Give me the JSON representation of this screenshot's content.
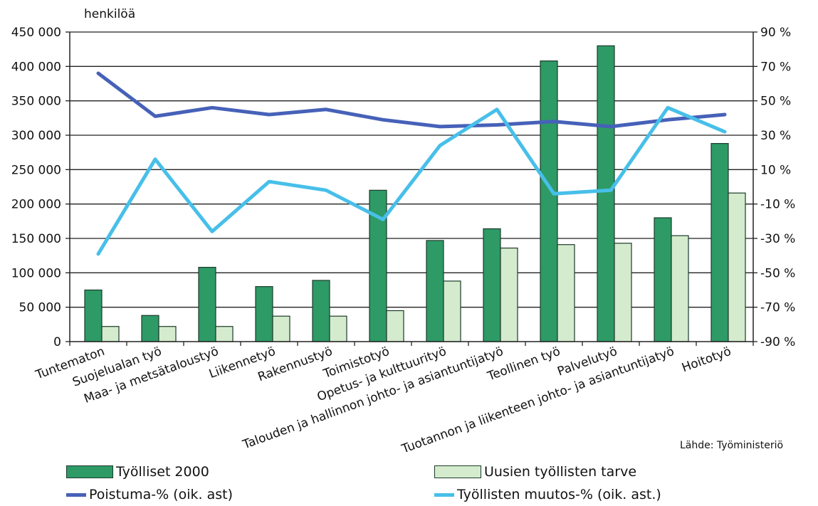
{
  "chart_data": {
    "type": "bar",
    "title": "",
    "ylabel": "henkilöä",
    "ylim": [
      0,
      450000
    ],
    "y2lim": [
      -90,
      90
    ],
    "yticks": [
      "0",
      "50 000",
      "100 000",
      "150 000",
      "200 000",
      "250 000",
      "300 000",
      "350 000",
      "400 000",
      "450 000"
    ],
    "y2ticks": [
      "-90 %",
      "-70 %",
      "-50 %",
      "-30 %",
      "-10 %",
      "10 %",
      "30 %",
      "50 %",
      "70 %",
      "90 %"
    ],
    "categories": [
      "Tuntematon",
      "Suojelualan työ",
      "Maa- ja metsätaloustyö",
      "Liikennetyö",
      "Rakennustyö",
      "Toimistotyö",
      "Opetus- ja kulttuurityö",
      "Talouden ja hallinnon johto- ja asiantuntijatyö",
      "Teollinen työ",
      "Palvelutyö",
      "Tuotannon ja liikenteen johto- ja asiantuntijatyö",
      "Hoitotyö"
    ],
    "series": [
      {
        "name": "Työlliset 2000",
        "kind": "bar",
        "axis": "left",
        "color": "#2e9a66",
        "values": [
          75000,
          38000,
          108000,
          80000,
          89000,
          220000,
          147000,
          164000,
          408000,
          430000,
          180000,
          288000
        ]
      },
      {
        "name": "Uusien työllisten tarve",
        "kind": "bar",
        "axis": "left",
        "color": "#d4ebcd",
        "values": [
          22000,
          22000,
          22000,
          37000,
          37000,
          45000,
          88000,
          136000,
          141000,
          143000,
          154000,
          216000
        ]
      },
      {
        "name": "Poistuma-% (oik. ast)",
        "kind": "line",
        "axis": "right",
        "color": "#4661b8",
        "values": [
          66,
          41,
          46,
          42,
          45,
          39,
          35,
          36,
          38,
          35,
          39,
          42
        ]
      },
      {
        "name": "Työllisten muutos-% (oik. ast.)",
        "kind": "line",
        "axis": "right",
        "color": "#47bfe9",
        "values": [
          -39,
          16,
          -26,
          3,
          -2,
          -19,
          24,
          45,
          -4,
          -2,
          46,
          32
        ]
      }
    ],
    "grid": true,
    "legend_position": "bottom",
    "source": "Lähde: Työministeriö"
  }
}
